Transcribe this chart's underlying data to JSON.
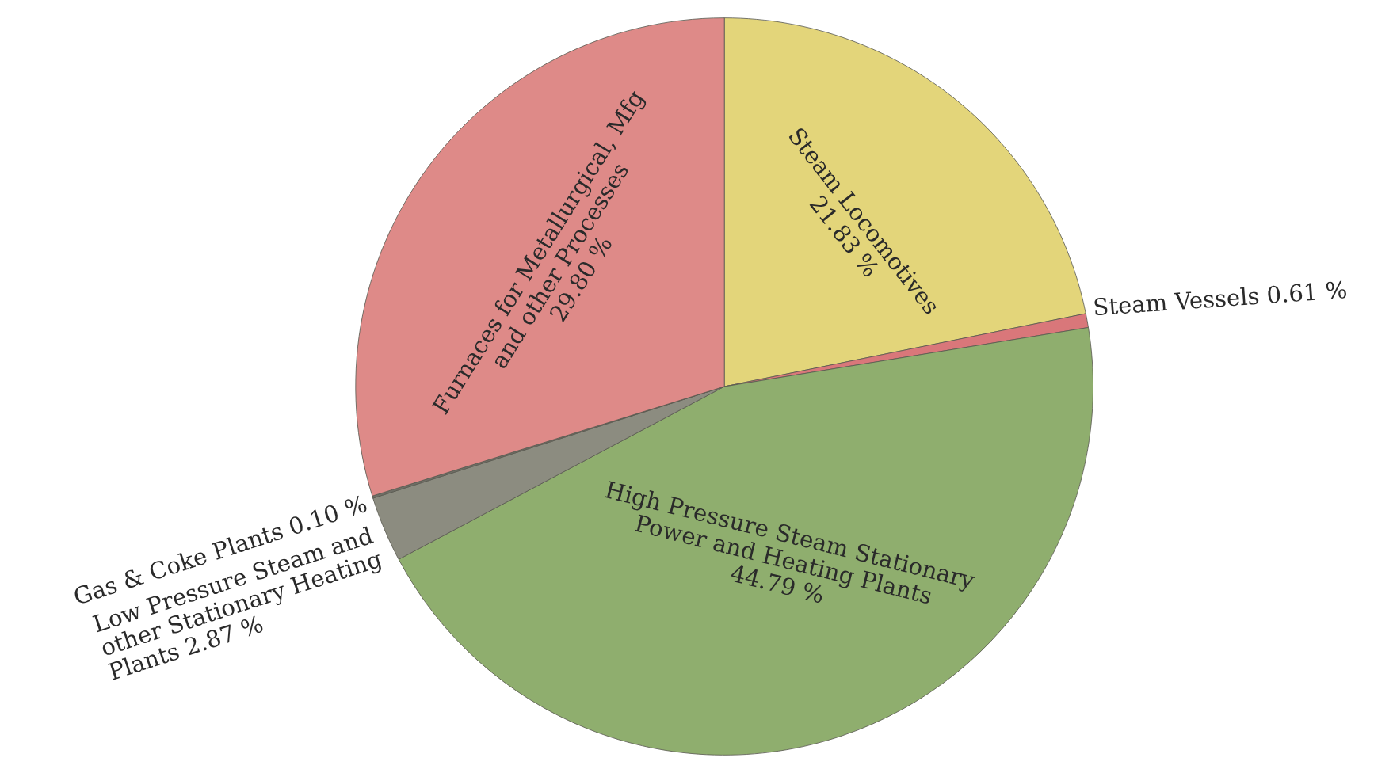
{
  "chart_data": {
    "type": "pie",
    "categories": [
      "Steam Locomotives",
      "Steam Vessels",
      "High Pressure Steam Stationary\nPower and Heating Plants",
      "Low Pressure Steam and\nother Stationary Heating\nPlants",
      "Gas & Coke Plants",
      "Furnaces for Metallurgical, Mfg\nand other Processes"
    ],
    "values": [
      21.83,
      0.61,
      44.79,
      2.87,
      0.1,
      29.8
    ],
    "value_labels": [
      "21.83 %",
      "0.61 %",
      "44.79 %",
      "2.87 %",
      "0.10 %",
      "29.80 %"
    ],
    "colors": [
      "#e3d57a",
      "#d9777a",
      "#8fae6e",
      "#8c8c80",
      "#6f6f66",
      "#de8a88"
    ],
    "legend": false
  }
}
